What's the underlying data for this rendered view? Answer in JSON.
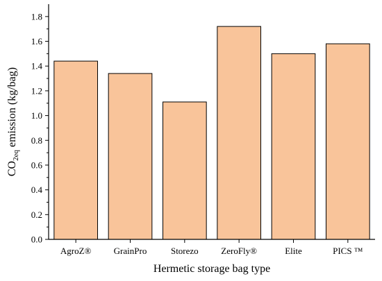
{
  "chart_data": {
    "type": "bar",
    "categories": [
      "AgroZ®",
      "GrainPro",
      "Storezo",
      "ZeroFly®",
      "Elite",
      "PICS ™"
    ],
    "values": [
      1.44,
      1.34,
      1.11,
      1.72,
      1.5,
      1.58
    ],
    "xlabel": "Hermetic storage bag type",
    "ylabel": {
      "main": "CO",
      "sub": "2eq",
      "rest": " emission (kg/bag)"
    },
    "ylim": [
      0,
      1.9
    ],
    "yticks": [
      "0.0",
      "0.2",
      "0.4",
      "0.6",
      "0.8",
      "1.0",
      "1.2",
      "1.4",
      "1.6",
      "1.8"
    ],
    "grid": false,
    "bar_color": "#F9C49A"
  }
}
